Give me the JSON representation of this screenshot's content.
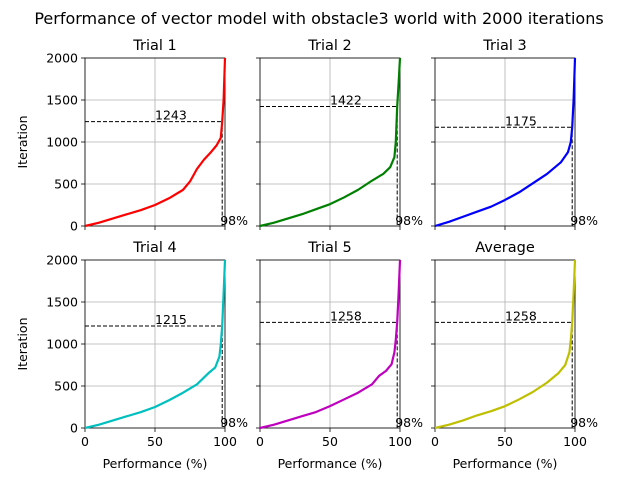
{
  "figure": {
    "suptitle": "Performance of vector model with obstacle3 world with 2000 iterations"
  },
  "chart_data": [
    {
      "type": "line",
      "title": "Trial 1",
      "color": "#ff0000",
      "xlabel": "",
      "ylabel": "Iteration",
      "xlim": [
        0,
        100
      ],
      "ylim": [
        0,
        2000
      ],
      "x_ticks": [
        "0",
        "50",
        "100"
      ],
      "y_ticks": [
        "0",
        "500",
        "1000",
        "1500",
        "2000"
      ],
      "grid": true,
      "threshold_label": "98%",
      "threshold_x": 98,
      "threshold_iteration": 1243,
      "threshold_iteration_label": "1243",
      "points": [
        [
          0,
          0
        ],
        [
          10,
          40
        ],
        [
          20,
          90
        ],
        [
          30,
          140
        ],
        [
          40,
          190
        ],
        [
          50,
          250
        ],
        [
          60,
          330
        ],
        [
          70,
          430
        ],
        [
          75,
          530
        ],
        [
          80,
          680
        ],
        [
          85,
          790
        ],
        [
          90,
          880
        ],
        [
          94,
          960
        ],
        [
          97,
          1050
        ],
        [
          98,
          1243
        ],
        [
          99,
          1500
        ],
        [
          100,
          2000
        ]
      ]
    },
    {
      "type": "line",
      "title": "Trial 2",
      "color": "#008000",
      "xlabel": "",
      "ylabel": "",
      "xlim": [
        0,
        100
      ],
      "ylim": [
        0,
        2000
      ],
      "x_ticks": [
        "0",
        "50",
        "100"
      ],
      "y_ticks": [
        "0",
        "500",
        "1000",
        "1500",
        "2000"
      ],
      "grid": true,
      "threshold_label": "98%",
      "threshold_x": 98,
      "threshold_iteration": 1422,
      "threshold_iteration_label": "1422",
      "points": [
        [
          0,
          0
        ],
        [
          10,
          40
        ],
        [
          20,
          90
        ],
        [
          30,
          140
        ],
        [
          40,
          200
        ],
        [
          50,
          260
        ],
        [
          60,
          340
        ],
        [
          70,
          430
        ],
        [
          80,
          540
        ],
        [
          88,
          620
        ],
        [
          93,
          700
        ],
        [
          96,
          820
        ],
        [
          97,
          1000
        ],
        [
          98,
          1422
        ],
        [
          99,
          1700
        ],
        [
          100,
          2000
        ]
      ]
    },
    {
      "type": "line",
      "title": "Trial 3",
      "color": "#0000ff",
      "xlabel": "",
      "ylabel": "",
      "xlim": [
        0,
        100
      ],
      "ylim": [
        0,
        2000
      ],
      "x_ticks": [
        "0",
        "50",
        "100"
      ],
      "y_ticks": [
        "0",
        "500",
        "1000",
        "1500",
        "2000"
      ],
      "grid": true,
      "threshold_label": "98%",
      "threshold_x": 98,
      "threshold_iteration": 1175,
      "threshold_iteration_label": "1175",
      "points": [
        [
          0,
          0
        ],
        [
          10,
          50
        ],
        [
          20,
          110
        ],
        [
          30,
          170
        ],
        [
          40,
          230
        ],
        [
          50,
          310
        ],
        [
          60,
          400
        ],
        [
          70,
          510
        ],
        [
          80,
          620
        ],
        [
          90,
          760
        ],
        [
          95,
          880
        ],
        [
          97,
          1000
        ],
        [
          98,
          1175
        ],
        [
          99,
          1500
        ],
        [
          100,
          2000
        ]
      ]
    },
    {
      "type": "line",
      "title": "Trial 4",
      "color": "#00bfbf",
      "xlabel": "Performance (%)",
      "ylabel": "Iteration",
      "xlim": [
        0,
        100
      ],
      "ylim": [
        0,
        2000
      ],
      "x_ticks": [
        "0",
        "50",
        "100"
      ],
      "y_ticks": [
        "0",
        "500",
        "1000",
        "1500",
        "2000"
      ],
      "grid": true,
      "threshold_label": "98%",
      "threshold_x": 98,
      "threshold_iteration": 1215,
      "threshold_iteration_label": "1215",
      "points": [
        [
          0,
          0
        ],
        [
          10,
          40
        ],
        [
          20,
          90
        ],
        [
          30,
          140
        ],
        [
          40,
          190
        ],
        [
          50,
          250
        ],
        [
          60,
          330
        ],
        [
          70,
          420
        ],
        [
          80,
          520
        ],
        [
          88,
          650
        ],
        [
          93,
          720
        ],
        [
          96,
          850
        ],
        [
          97,
          1000
        ],
        [
          98,
          1215
        ],
        [
          99,
          1600
        ],
        [
          100,
          2000
        ]
      ]
    },
    {
      "type": "line",
      "title": "Trial 5",
      "color": "#bf00bf",
      "xlabel": "Performance (%)",
      "ylabel": "",
      "xlim": [
        0,
        100
      ],
      "ylim": [
        0,
        2000
      ],
      "x_ticks": [
        "0",
        "50",
        "100"
      ],
      "y_ticks": [
        "0",
        "500",
        "1000",
        "1500",
        "2000"
      ],
      "grid": true,
      "threshold_label": "98%",
      "threshold_x": 98,
      "threshold_iteration": 1258,
      "threshold_iteration_label": "1258",
      "points": [
        [
          0,
          0
        ],
        [
          10,
          40
        ],
        [
          20,
          90
        ],
        [
          30,
          140
        ],
        [
          40,
          190
        ],
        [
          50,
          260
        ],
        [
          60,
          340
        ],
        [
          70,
          420
        ],
        [
          80,
          520
        ],
        [
          85,
          620
        ],
        [
          90,
          680
        ],
        [
          94,
          760
        ],
        [
          96,
          900
        ],
        [
          97,
          1050
        ],
        [
          98,
          1258
        ],
        [
          99,
          1600
        ],
        [
          100,
          2000
        ]
      ]
    },
    {
      "type": "line",
      "title": "Average",
      "color": "#bfbf00",
      "xlabel": "Performance (%)",
      "ylabel": "",
      "xlim": [
        0,
        100
      ],
      "ylim": [
        0,
        2000
      ],
      "x_ticks": [
        "0",
        "50",
        "100"
      ],
      "y_ticks": [
        "0",
        "500",
        "1000",
        "1500",
        "2000"
      ],
      "grid": true,
      "threshold_label": "98%",
      "threshold_x": 98,
      "threshold_iteration": 1258,
      "threshold_iteration_label": "1258",
      "points": [
        [
          0,
          0
        ],
        [
          10,
          40
        ],
        [
          20,
          90
        ],
        [
          30,
          150
        ],
        [
          40,
          200
        ],
        [
          50,
          260
        ],
        [
          60,
          340
        ],
        [
          70,
          430
        ],
        [
          80,
          540
        ],
        [
          88,
          650
        ],
        [
          93,
          750
        ],
        [
          96,
          900
        ],
        [
          97,
          1050
        ],
        [
          98,
          1258
        ],
        [
          99,
          1600
        ],
        [
          100,
          2000
        ]
      ]
    }
  ]
}
